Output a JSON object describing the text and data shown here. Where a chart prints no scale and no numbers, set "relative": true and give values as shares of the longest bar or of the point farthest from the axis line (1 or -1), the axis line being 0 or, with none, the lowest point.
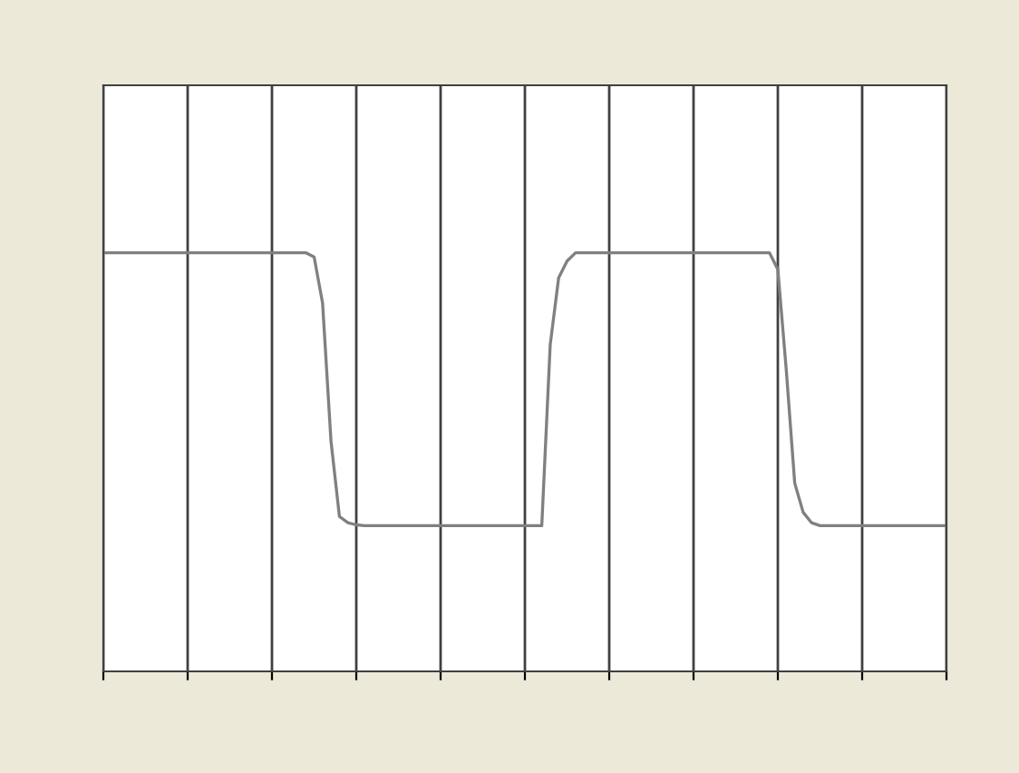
{
  "chart_data": {
    "type": "line",
    "relative": true,
    "categories": [
      null,
      null,
      null,
      null,
      null,
      null,
      null,
      null,
      null,
      null,
      null,
      null,
      null,
      null,
      null,
      null,
      null,
      null,
      null,
      null,
      null,
      null,
      null,
      null,
      null,
      null,
      null,
      null,
      null,
      null,
      null,
      null,
      null,
      null,
      null,
      null,
      null,
      null,
      null,
      null,
      null,
      null,
      null,
      null,
      null,
      null,
      null,
      null,
      null,
      null,
      null,
      null,
      null,
      null,
      null,
      null,
      null,
      null,
      null,
      null,
      null,
      null,
      null,
      null,
      null,
      null,
      null,
      null,
      null,
      null,
      null,
      null,
      null,
      null,
      null,
      null,
      null,
      null,
      null,
      null,
      null,
      null,
      null,
      null,
      null,
      null,
      null,
      null,
      null,
      null,
      null,
      null,
      null,
      null,
      null,
      null,
      null,
      null,
      null,
      null,
      null
    ],
    "series": [
      {
        "color": "#808080",
        "values": [
          1,
          1,
          1,
          1,
          1,
          1,
          1,
          1,
          1,
          1,
          1,
          1,
          1,
          1,
          1,
          1,
          1,
          1,
          1,
          1,
          1,
          1,
          1,
          1,
          1,
          0.99,
          0.88,
          0.55,
          0.37,
          0.355,
          0.35,
          0.348,
          0.348,
          0.348,
          0.348,
          0.348,
          0.348,
          0.348,
          0.348,
          0.348,
          0.348,
          0.348,
          0.348,
          0.348,
          0.348,
          0.348,
          0.348,
          0.348,
          0.348,
          0.348,
          0.348,
          0.348,
          0.348,
          0.78,
          0.94,
          0.98,
          1,
          1,
          1,
          1,
          1,
          1,
          1,
          1,
          1,
          1,
          1,
          1,
          1,
          1,
          1,
          1,
          1,
          1,
          1,
          1,
          1,
          1,
          1,
          1,
          0.96,
          0.72,
          0.45,
          0.38,
          0.355,
          0.348,
          0.348,
          0.348,
          0.348,
          0.348,
          0.348,
          0.348,
          0.348,
          0.348,
          0.348,
          0.348,
          0.348,
          0.348,
          0.348,
          0.348,
          0.348
        ]
      }
    ],
    "tick_labels": false,
    "grid": "x",
    "legend": false,
    "marker": "none",
    "line_style": "solid"
  }
}
